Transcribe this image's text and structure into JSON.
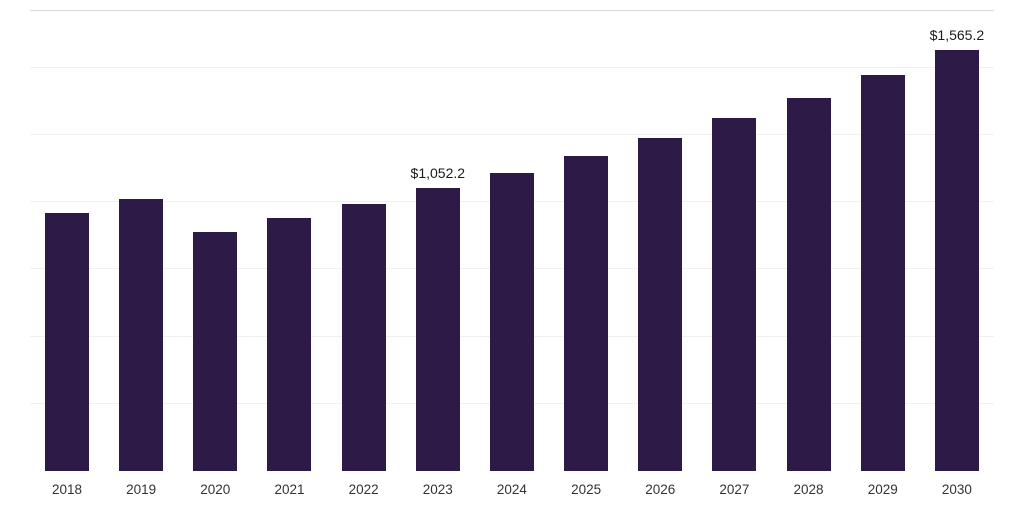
{
  "chart_data": {
    "type": "bar",
    "title": "",
    "xlabel": "",
    "ylabel": "",
    "categories": [
      "2018",
      "2019",
      "2020",
      "2021",
      "2022",
      "2023",
      "2024",
      "2025",
      "2026",
      "2027",
      "2028",
      "2029",
      "2030"
    ],
    "values": [
      959.5,
      1011.0,
      889.0,
      941.0,
      993.0,
      1052.2,
      1108.0,
      1172.0,
      1239.0,
      1313.0,
      1388.0,
      1473.0,
      1565.2
    ],
    "data_labels": {
      "2023": "$1,052.2",
      "2030": "$1,565.2"
    },
    "value_prefix": "$",
    "ylim": [
      0,
      1710
    ],
    "grid": "horizontal",
    "gridline_step": 250,
    "legend": "none",
    "bar_color": "#2e1a47"
  },
  "colors": {
    "bar": "#2e1a47",
    "gridline": "#f0f0f0",
    "plot_top_border": "#d9d9d9",
    "tick_label": "#333333",
    "data_label": "#1a1a1a",
    "background": "#ffffff"
  }
}
